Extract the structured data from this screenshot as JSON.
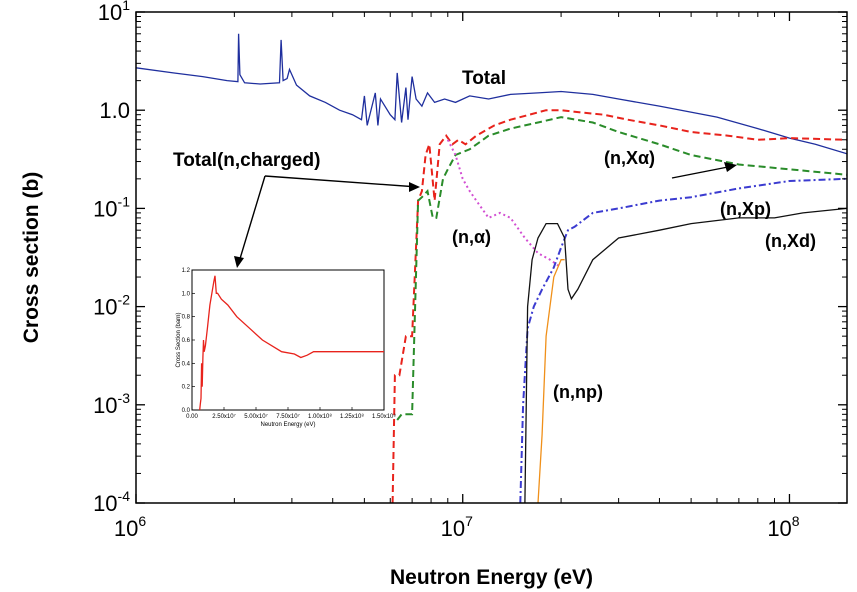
{
  "chart_data": [
    {
      "type": "line",
      "xscale": "log",
      "yscale": "log",
      "xlim": [
        1000000,
        150000000
      ],
      "ylim": [
        0.0001,
        10
      ],
      "xlabel": "Neutron Energy (eV)",
      "ylabel": "Cross section (b)",
      "x_ticks": [
        {
          "base": "10",
          "exp": "6"
        },
        {
          "base": "10",
          "exp": "7"
        },
        {
          "base": "10",
          "exp": "8"
        }
      ],
      "y_ticks": [
        {
          "base": "10",
          "exp": "-4"
        },
        {
          "base": "10",
          "exp": "-3"
        },
        {
          "base": "10",
          "exp": "-2"
        },
        {
          "base": "10",
          "exp": "-1"
        },
        {
          "base": "10",
          "exp": "0",
          "text": "1.0"
        },
        {
          "base": "10",
          "exp": "1"
        }
      ],
      "series": [
        {
          "name": "Total",
          "color": "#1f2f9e",
          "style": "solid",
          "x": [
            1000000,
            1300000,
            1600000,
            1900000,
            2050000,
            2060000,
            2080000,
            2150000,
            2400000,
            2750000,
            2780000,
            2820000,
            2900000,
            2950000,
            3100000,
            3400000,
            3800000,
            4200000,
            4600000,
            4900000,
            5000000,
            5100000,
            5400000,
            5500000,
            5600000,
            6000000,
            6200000,
            6300000,
            6500000,
            6700000,
            6800000,
            7000000,
            7200000,
            7500000,
            7800000,
            8200000,
            8800000,
            9500000,
            10500000,
            12000000,
            14000000,
            17000000,
            20000000,
            25000000,
            30000000,
            40000000,
            60000000,
            80000000,
            100000000,
            120000000,
            150000000
          ],
          "y": [
            2.7,
            2.4,
            2.2,
            2.0,
            1.95,
            6.0,
            2.3,
            1.9,
            1.85,
            1.9,
            5.2,
            2.0,
            2.1,
            2.6,
            1.8,
            1.4,
            1.2,
            1.0,
            0.9,
            0.8,
            1.4,
            0.7,
            1.5,
            0.7,
            1.3,
            0.9,
            0.8,
            2.4,
            0.75,
            1.7,
            0.8,
            2.2,
            1.3,
            1.1,
            1.5,
            1.2,
            1.3,
            1.2,
            1.4,
            1.3,
            1.45,
            1.5,
            1.55,
            1.45,
            1.3,
            1.1,
            0.85,
            0.65,
            0.52,
            0.45,
            0.36
          ]
        },
        {
          "name": "Total(n,charged)",
          "color": "#e8231c",
          "style": "dashed",
          "x": [
            6100000,
            6200000,
            6400000,
            6700000,
            7000000,
            7300000,
            7500000,
            7700000,
            7900000,
            8200000,
            8500000,
            8900000,
            9300000,
            9700000,
            10200000,
            11000000,
            12500000,
            14000000,
            16000000,
            18000000,
            20000000,
            23000000,
            27000000,
            32000000,
            40000000,
            50000000,
            65000000,
            80000000,
            100000000,
            150000000
          ],
          "y": [
            0.0001,
            0.002,
            0.002,
            0.005,
            0.005,
            0.12,
            0.15,
            0.35,
            0.45,
            0.12,
            0.45,
            0.55,
            0.45,
            0.5,
            0.45,
            0.55,
            0.7,
            0.8,
            0.9,
            1.0,
            1.0,
            0.95,
            0.9,
            0.8,
            0.7,
            0.6,
            0.55,
            0.5,
            0.52,
            0.5
          ]
        },
        {
          "name": "(n,Xα)",
          "color": "#2a8c2a",
          "style": "dashed",
          "x": [
            6300000,
            6500000,
            7000000,
            7300000,
            7500000,
            7800000,
            8100000,
            8300000,
            8700000,
            9000000,
            9500000,
            10500000,
            12000000,
            14000000,
            17000000,
            20000000,
            25000000,
            30000000,
            40000000,
            50000000,
            70000000,
            100000000,
            150000000
          ],
          "y": [
            0.0007,
            0.0008,
            0.0008,
            0.12,
            0.13,
            0.15,
            0.08,
            0.08,
            0.2,
            0.25,
            0.35,
            0.4,
            0.55,
            0.65,
            0.75,
            0.85,
            0.75,
            0.6,
            0.45,
            0.35,
            0.28,
            0.25,
            0.22
          ]
        },
        {
          "name": "(n,α)",
          "color": "#d24fd2",
          "style": "dotted",
          "x": [
            9000000,
            9500000,
            10000000,
            10500000,
            11000000,
            12000000,
            13000000,
            14000000,
            15500000,
            17000000,
            18500000,
            20000000
          ],
          "y": [
            0.5,
            0.35,
            0.2,
            0.15,
            0.12,
            0.08,
            0.09,
            0.08,
            0.05,
            0.035,
            0.03,
            0.025
          ]
        },
        {
          "name": "(n,Xp)",
          "color": "#3b3bd0",
          "style": "dashdot",
          "x": [
            15000000,
            15300000,
            15800000,
            16500000,
            17500000,
            19000000,
            20000000,
            21000000,
            22000000,
            25000000,
            30000000,
            40000000,
            50000000,
            70000000,
            100000000,
            150000000
          ],
          "y": [
            0.0001,
            0.001,
            0.006,
            0.01,
            0.015,
            0.025,
            0.04,
            0.06,
            0.065,
            0.09,
            0.1,
            0.12,
            0.13,
            0.16,
            0.19,
            0.2
          ]
        },
        {
          "name": "(n,Xd)",
          "color": "#111111",
          "style": "solid",
          "x": [
            15500000,
            15800000,
            16300000,
            17000000,
            18000000,
            19500000,
            20500000,
            21000000,
            21500000,
            22500000,
            25000000,
            30000000,
            40000000,
            50000000,
            70000000,
            90000000,
            110000000,
            150000000
          ],
          "y": [
            0.0001,
            0.01,
            0.03,
            0.05,
            0.07,
            0.07,
            0.05,
            0.015,
            0.012,
            0.015,
            0.03,
            0.05,
            0.06,
            0.07,
            0.08,
            0.08,
            0.09,
            0.1
          ]
        },
        {
          "name": "(n,np)",
          "color": "#f0901a",
          "style": "solid",
          "x": [
            17000000,
            17500000,
            18000000,
            19000000,
            20000000,
            20500000
          ],
          "y": [
            0.0001,
            0.0005,
            0.005,
            0.02,
            0.03,
            0.03
          ]
        }
      ],
      "annotations": [
        "Total",
        "Total(n,charged)",
        "(n,Xα)",
        "(n,Xp)",
        "(n,α)",
        "(n,Xd)",
        "(n,np)"
      ]
    },
    {
      "type": "line",
      "role": "inset",
      "xlim": [
        0,
        150000000
      ],
      "ylim": [
        0,
        1.2
      ],
      "xlabel": "Neutron Energy (eV)",
      "ylabel": "Cross Section (barn)",
      "x_ticks": [
        "0.00",
        "2.50x10⁷",
        "5.00x10⁷",
        "7.50x10⁷",
        "1.00x10⁸",
        "1.25x10⁸",
        "1.50x10⁸"
      ],
      "y_ticks": [
        "0.0",
        "0.2",
        "0.4",
        "0.6",
        "0.8",
        "1.0",
        "1.2"
      ],
      "series": [
        {
          "color": "#e8231c",
          "x": [
            6000000,
            6500000,
            7000000,
            7500000,
            8000000,
            8500000,
            9000000,
            9500000,
            10500000,
            12000000,
            14000000,
            17000000,
            18000000,
            19000000,
            20000000,
            23000000,
            28000000,
            35000000,
            45000000,
            55000000,
            70000000,
            80000000,
            85000000,
            90000000,
            95000000,
            110000000,
            130000000,
            150000000
          ],
          "y": [
            0.0,
            0.05,
            0.1,
            0.4,
            0.2,
            0.45,
            0.6,
            0.5,
            0.55,
            0.7,
            0.9,
            1.1,
            1.15,
            1.0,
            1.0,
            0.95,
            0.9,
            0.8,
            0.7,
            0.6,
            0.5,
            0.48,
            0.45,
            0.47,
            0.5,
            0.5,
            0.5,
            0.5
          ]
        }
      ]
    }
  ]
}
